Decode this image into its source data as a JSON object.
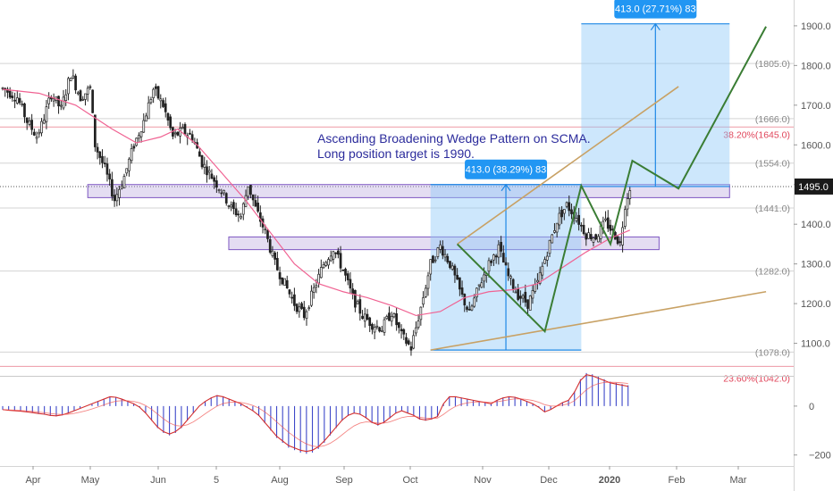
{
  "chart_data": {
    "type": "candlestick",
    "price_axis": {
      "ticks": [
        1100,
        1200,
        1300,
        1400,
        1500,
        1600,
        1700,
        1800,
        1900
      ],
      "tick_labels": [
        "1100.0",
        "1200.0",
        "1300.0",
        "1400.0",
        "1500.0",
        "1600.0",
        "1700.0",
        "1800.0",
        "1900.0"
      ],
      "ylim": [
        1018,
        1965
      ],
      "current_price": 1495.0,
      "current_price_label": "1495.0"
    },
    "macd_axis": {
      "ticks": [
        0,
        -200
      ],
      "tick_labels": [
        "0",
        "−200"
      ],
      "ylim": [
        -245,
        120
      ]
    },
    "time_axis": {
      "labels": [
        "Apr",
        "May",
        "Jun",
        "5",
        "Aug",
        "Sep",
        "Oct",
        "Nov",
        "Dec",
        "2020",
        "Feb",
        "Mar"
      ],
      "bold_label": "2020"
    },
    "price_path": [
      [
        0,
        1742
      ],
      [
        6,
        1720
      ],
      [
        10,
        1660
      ],
      [
        14,
        1622
      ],
      [
        16,
        1650
      ],
      [
        20,
        1728
      ],
      [
        24,
        1690
      ],
      [
        28,
        1780
      ],
      [
        32,
        1720
      ],
      [
        36,
        1742
      ],
      [
        38,
        1600
      ],
      [
        42,
        1540
      ],
      [
        46,
        1462
      ],
      [
        50,
        1520
      ],
      [
        54,
        1600
      ],
      [
        58,
        1660
      ],
      [
        62,
        1740
      ],
      [
        66,
        1700
      ],
      [
        70,
        1620
      ],
      [
        74,
        1635
      ],
      [
        78,
        1620
      ],
      [
        82,
        1555
      ],
      [
        86,
        1520
      ],
      [
        90,
        1485
      ],
      [
        94,
        1440
      ],
      [
        98,
        1420
      ],
      [
        101,
        1500
      ],
      [
        104,
        1440
      ],
      [
        108,
        1380
      ],
      [
        112,
        1300
      ],
      [
        116,
        1250
      ],
      [
        120,
        1200
      ],
      [
        124,
        1170
      ],
      [
        128,
        1235
      ],
      [
        132,
        1300
      ],
      [
        136,
        1340
      ],
      [
        140,
        1285
      ],
      [
        144,
        1215
      ],
      [
        148,
        1170
      ],
      [
        152,
        1148
      ],
      [
        156,
        1138
      ],
      [
        160,
        1178
      ],
      [
        164,
        1120
      ],
      [
        168,
        1088
      ],
      [
        172,
        1190
      ],
      [
        176,
        1300
      ],
      [
        180,
        1345
      ],
      [
        184,
        1300
      ],
      [
        188,
        1232
      ],
      [
        192,
        1175
      ],
      [
        196,
        1245
      ],
      [
        200,
        1300
      ],
      [
        204,
        1340
      ],
      [
        208,
        1268
      ],
      [
        212,
        1222
      ],
      [
        216,
        1200
      ],
      [
        220,
        1252
      ],
      [
        224,
        1332
      ],
      [
        228,
        1410
      ],
      [
        232,
        1448
      ],
      [
        236,
        1418
      ],
      [
        240,
        1375
      ],
      [
        244,
        1368
      ],
      [
        248,
        1405
      ],
      [
        252,
        1372
      ],
      [
        254,
        1350
      ],
      [
        256,
        1450
      ],
      [
        258,
        1495
      ]
    ],
    "sma_path": [
      [
        0,
        1740
      ],
      [
        15,
        1730
      ],
      [
        30,
        1700
      ],
      [
        45,
        1640
      ],
      [
        55,
        1605
      ],
      [
        65,
        1620
      ],
      [
        72,
        1640
      ],
      [
        80,
        1600
      ],
      [
        90,
        1530
      ],
      [
        100,
        1460
      ],
      [
        110,
        1380
      ],
      [
        120,
        1300
      ],
      [
        130,
        1250
      ],
      [
        140,
        1230
      ],
      [
        150,
        1215
      ],
      [
        160,
        1195
      ],
      [
        170,
        1170
      ],
      [
        180,
        1180
      ],
      [
        190,
        1215
      ],
      [
        200,
        1230
      ],
      [
        210,
        1235
      ],
      [
        220,
        1250
      ],
      [
        230,
        1290
      ],
      [
        240,
        1330
      ],
      [
        250,
        1365
      ],
      [
        258,
        1385
      ]
    ],
    "horizontal_levels": [
      {
        "price": 1805,
        "label": "(1805.0)",
        "color": "#9e9e9e"
      },
      {
        "price": 1666,
        "label": "(1666.0)",
        "color": "#9e9e9e"
      },
      {
        "price": 1554,
        "label": "(1554.0)",
        "color": "#9e9e9e"
      },
      {
        "price": 1441,
        "label": "(1441.0)",
        "color": "#9e9e9e"
      },
      {
        "price": 1282,
        "label": "(1282.0)",
        "color": "#9e9e9e"
      },
      {
        "price": 1078,
        "label": "(1078.0)",
        "color": "#9e9e9e"
      }
    ],
    "fib_levels": [
      {
        "price": 1645,
        "label": "38.20%(1645.0)",
        "color": "#e0455a"
      },
      {
        "price": 1042,
        "label": "23.60%(1042.0)",
        "color": "#e0455a"
      }
    ],
    "zones": [
      {
        "x1": 35,
        "x2": 299,
        "y1": 1467,
        "y2": 1500
      },
      {
        "x1": 93,
        "x2": 270,
        "y1": 1336,
        "y2": 1368
      }
    ],
    "measure_boxes": [
      {
        "x1": 176,
        "x2": 238,
        "y1": 1083,
        "y2": 1500,
        "label": "413.0 (38.29%) 83"
      },
      {
        "x1": 238,
        "x2": 299,
        "y1": 1495,
        "y2": 1905,
        "label": "413.0 (27.71%) 83"
      }
    ],
    "wedge_lines": [
      {
        "points": [
          [
            176,
            1083
          ],
          [
            314,
            1230
          ]
        ],
        "color": "#c8a164"
      },
      {
        "points": [
          [
            187,
            1350
          ],
          [
            278,
            1747
          ]
        ],
        "color": "#c8a164"
      }
    ],
    "projection": [
      [
        187,
        1350
      ],
      [
        223,
        1130
      ],
      [
        238,
        1497
      ],
      [
        250,
        1350
      ],
      [
        259,
        1560
      ],
      [
        278,
        1490
      ],
      [
        314,
        1898
      ]
    ],
    "note_lines": [
      "Ascending Broadening Wedge Pattern on SCMA.",
      "Long position target is 1990."
    ],
    "macd_values": [
      -15,
      -18,
      -20,
      -22,
      -25,
      -28,
      -32,
      -35,
      -40,
      -42,
      -38,
      -30,
      -20,
      -10,
      0,
      10,
      20,
      30,
      40,
      38,
      30,
      20,
      10,
      -5,
      -30,
      -60,
      -90,
      -110,
      -120,
      -110,
      -90,
      -60,
      -30,
      0,
      20,
      35,
      45,
      40,
      30,
      20,
      10,
      -5,
      -20,
      -40,
      -70,
      -100,
      -130,
      -150,
      -170,
      -180,
      -190,
      -195,
      -190,
      -175,
      -150,
      -120,
      -90,
      -60,
      -40,
      -30,
      -35,
      -50,
      -70,
      -80,
      -70,
      -50,
      -30,
      -20,
      -30,
      -40,
      -55,
      -60,
      -55,
      -45,
      10,
      40,
      40,
      35,
      30,
      25,
      20,
      15,
      10,
      25,
      35,
      40,
      38,
      30,
      20,
      10,
      -5,
      -25,
      -15,
      0,
      15,
      25,
      60,
      110,
      135,
      130,
      120,
      110,
      100,
      95,
      90,
      85
    ]
  }
}
